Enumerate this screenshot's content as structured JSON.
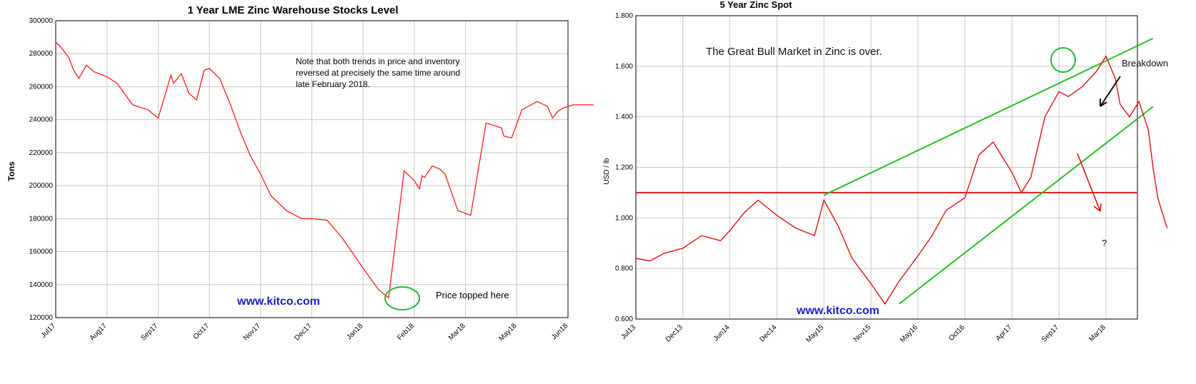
{
  "chart_data": [
    {
      "type": "line",
      "title": "1 Year LME Zinc Warehouse Stocks Level",
      "ylabel": "Tons",
      "xlabel": "",
      "ylim": [
        120000,
        300000
      ],
      "yticks": [
        "300000",
        "280000",
        "260000",
        "240000",
        "220000",
        "200000",
        "180000",
        "160000",
        "140000",
        "120000"
      ],
      "yticks_values": [
        300000,
        280000,
        260000,
        240000,
        220000,
        200000,
        180000,
        160000,
        140000,
        120000
      ],
      "categories": [
        "Jul17",
        "Aug17",
        "Sep17",
        "Oct17",
        "Nov17",
        "Dec17",
        "Jan18",
        "Feb18",
        "Mar18",
        "May18",
        "Jun18"
      ],
      "grid": true,
      "series": [
        {
          "color": "#ff1a1a",
          "x": [
            0,
            0.1,
            0.25,
            0.35,
            0.45,
            0.6,
            0.75,
            1.0,
            1.2,
            1.5,
            1.8,
            2.0,
            2.25,
            2.3,
            2.45,
            2.6,
            2.75,
            2.9,
            3.0,
            3.2,
            3.4,
            3.6,
            3.8,
            4.0,
            4.2,
            4.5,
            4.8,
            5.0,
            5.3,
            5.6,
            6.0,
            6.3,
            6.5,
            6.8,
            7.0,
            7.1,
            7.15,
            7.2,
            7.35,
            7.5,
            7.6,
            7.85,
            8.1,
            8.4,
            8.7,
            8.75,
            8.9,
            9.1,
            9.4,
            9.6,
            9.7,
            9.8,
            9.9,
            10.1,
            10.3,
            10.5
          ],
          "y": [
            287000,
            284000,
            278000,
            270000,
            265000,
            273000,
            269000,
            266000,
            262000,
            249000,
            246000,
            241000,
            267000,
            262000,
            268000,
            256000,
            252000,
            270000,
            271000,
            265000,
            250000,
            233000,
            218000,
            207000,
            194000,
            185000,
            180000,
            180000,
            179000,
            168000,
            150000,
            137000,
            132000,
            209000,
            203000,
            198000,
            206000,
            205000,
            212000,
            210000,
            207000,
            185000,
            182000,
            238000,
            235000,
            230000,
            229000,
            246000,
            251000,
            248000,
            241000,
            245000,
            247000,
            249000,
            249000,
            249000
          ]
        }
      ],
      "annotations": {
        "note": [
          "Note that both trends in price and inventory",
          "reversed at precisely the same time around",
          "late February 2018."
        ],
        "price_topped": "Price topped here",
        "watermark": "www.kitco.com"
      }
    },
    {
      "type": "line",
      "title": "5 Year Zinc Spot",
      "ylabel": "USD / lb",
      "xlabel": "",
      "ylim": [
        0.6,
        1.8
      ],
      "yticks": [
        "1.800",
        "1.600",
        "1.400",
        "1.200",
        "1.000",
        "0.800",
        "0.600"
      ],
      "yticks_values": [
        1.8,
        1.6,
        1.4,
        1.2,
        1.0,
        0.8,
        0.6
      ],
      "categories": [
        "Jul13",
        "Dec13",
        "Jun14",
        "Dec14",
        "May15",
        "Nov15",
        "May16",
        "Oct16",
        "Apr17",
        "Sep17",
        "Mar18"
      ],
      "grid": true,
      "series": [
        {
          "color": "#e01010",
          "x": [
            0,
            0.3,
            0.6,
            1.0,
            1.4,
            1.8,
            2.0,
            2.3,
            2.6,
            3.0,
            3.4,
            3.8,
            4.0,
            4.3,
            4.6,
            5.0,
            5.3,
            5.6,
            6.0,
            6.3,
            6.6,
            7.0,
            7.3,
            7.6,
            8.0,
            8.2,
            8.4,
            8.7,
            9.0,
            9.2,
            9.5,
            9.8,
            10.0,
            10.2,
            10.3,
            10.5,
            10.7,
            10.9,
            11.0,
            11.1,
            11.3
          ],
          "y": [
            0.84,
            0.83,
            0.86,
            0.88,
            0.93,
            0.91,
            0.95,
            1.02,
            1.07,
            1.01,
            0.96,
            0.93,
            1.07,
            0.97,
            0.84,
            0.74,
            0.66,
            0.75,
            0.85,
            0.93,
            1.03,
            1.08,
            1.25,
            1.3,
            1.18,
            1.1,
            1.16,
            1.4,
            1.5,
            1.48,
            1.52,
            1.58,
            1.64,
            1.55,
            1.45,
            1.4,
            1.46,
            1.35,
            1.2,
            1.08,
            0.96
          ]
        }
      ],
      "trendlines": {
        "horizontal_level": 1.1,
        "upper_channel": {
          "x": [
            4.0,
            11.0
          ],
          "y": [
            1.09,
            1.71
          ]
        },
        "lower_channel": {
          "x": [
            5.6,
            11.0
          ],
          "y": [
            0.66,
            1.44
          ]
        }
      },
      "annotations": {
        "headline": "The Great Bull Market in Zinc is over.",
        "breakdown": "Breakdown",
        "question": "?",
        "watermark": "www.kitco.com"
      }
    }
  ],
  "colors": {
    "line_red": "#ff1a1a",
    "spot_red": "#e01010",
    "trend_green": "#22c222",
    "circle_green": "#1fb83b",
    "level_red": "#d81e1e",
    "grid": "#c8c8c8",
    "watermark_blue": "#1c1cc8"
  }
}
